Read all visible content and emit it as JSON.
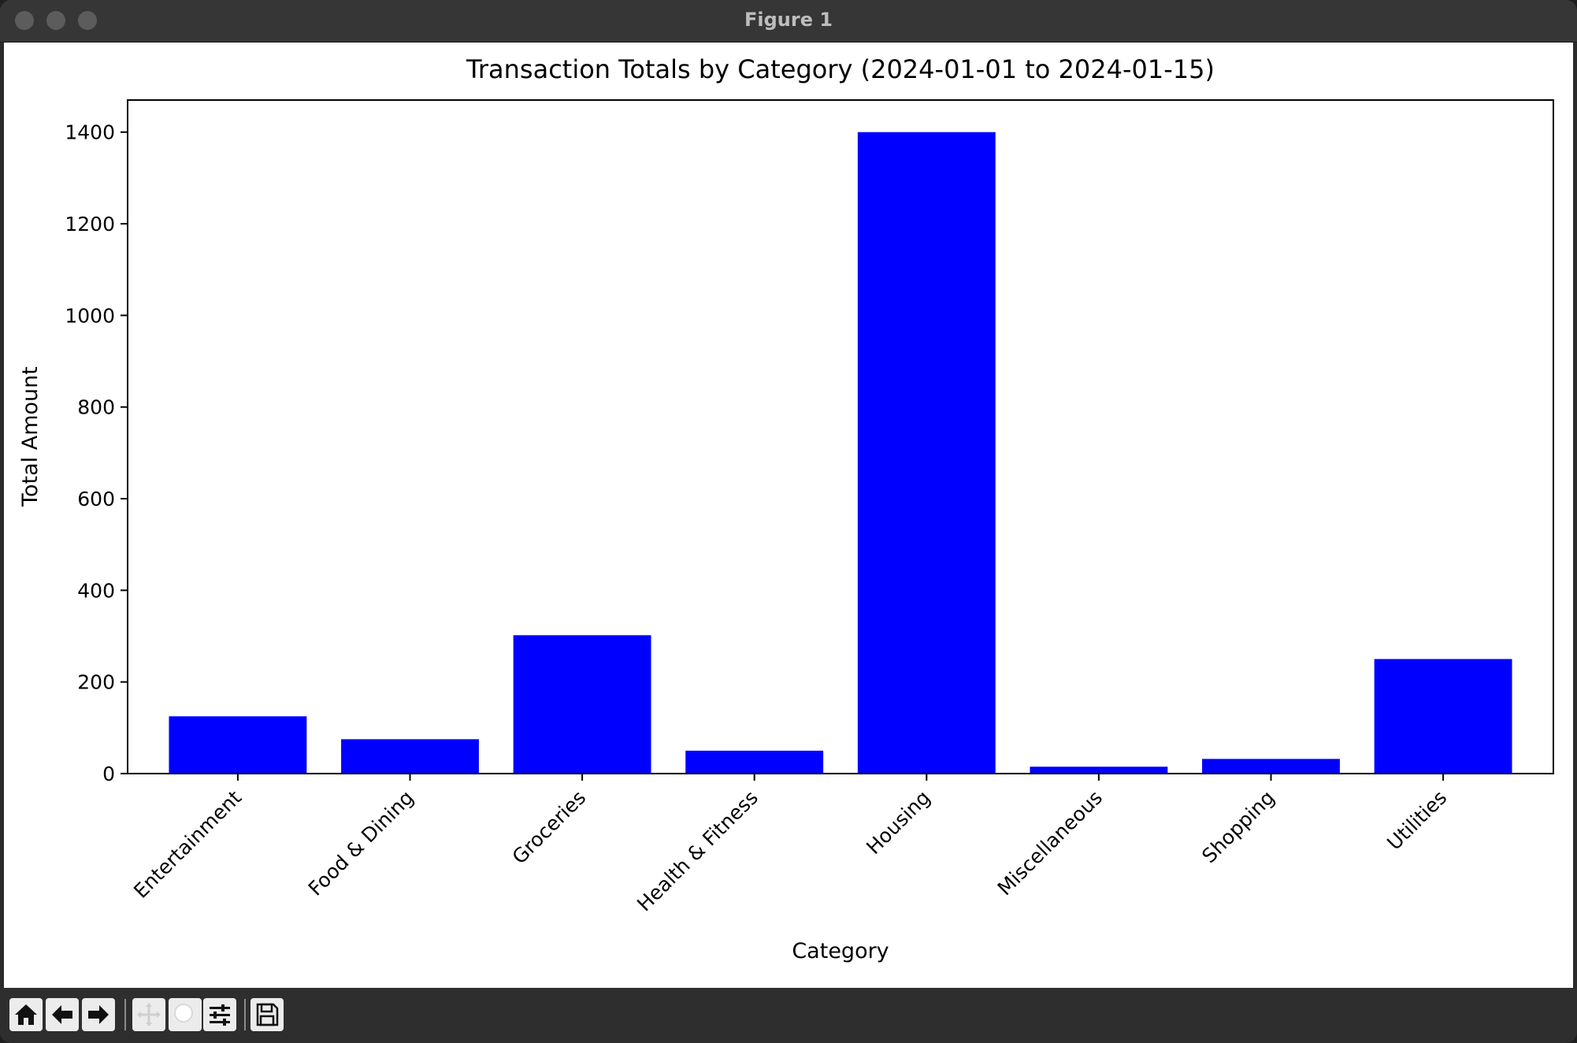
{
  "window": {
    "title": "Figure 1"
  },
  "toolbar": {
    "buttons": [
      {
        "icon": "home-icon"
      },
      {
        "icon": "back-arrow-icon"
      },
      {
        "icon": "forward-arrow-icon"
      },
      {
        "icon": "pan-icon"
      },
      {
        "icon": "zoom-icon"
      },
      {
        "icon": "configure-subplots-icon"
      },
      {
        "icon": "save-icon"
      }
    ]
  },
  "chart_data": {
    "type": "bar",
    "title": "Transaction Totals by Category (2024-01-01 to 2024-01-15)",
    "xlabel": "Category",
    "ylabel": "Total Amount",
    "categories": [
      "Entertainment",
      "Food & Dining",
      "Groceries",
      "Health & Fitness",
      "Housing",
      "Miscellaneous",
      "Shopping",
      "Utilities"
    ],
    "values": [
      125,
      75,
      302,
      50,
      1400,
      15,
      32,
      250
    ],
    "ylim": [
      0,
      1470
    ],
    "yticks": [
      0,
      200,
      400,
      600,
      800,
      1000,
      1200,
      1400
    ],
    "bar_color": "#0000ff",
    "grid": false
  }
}
